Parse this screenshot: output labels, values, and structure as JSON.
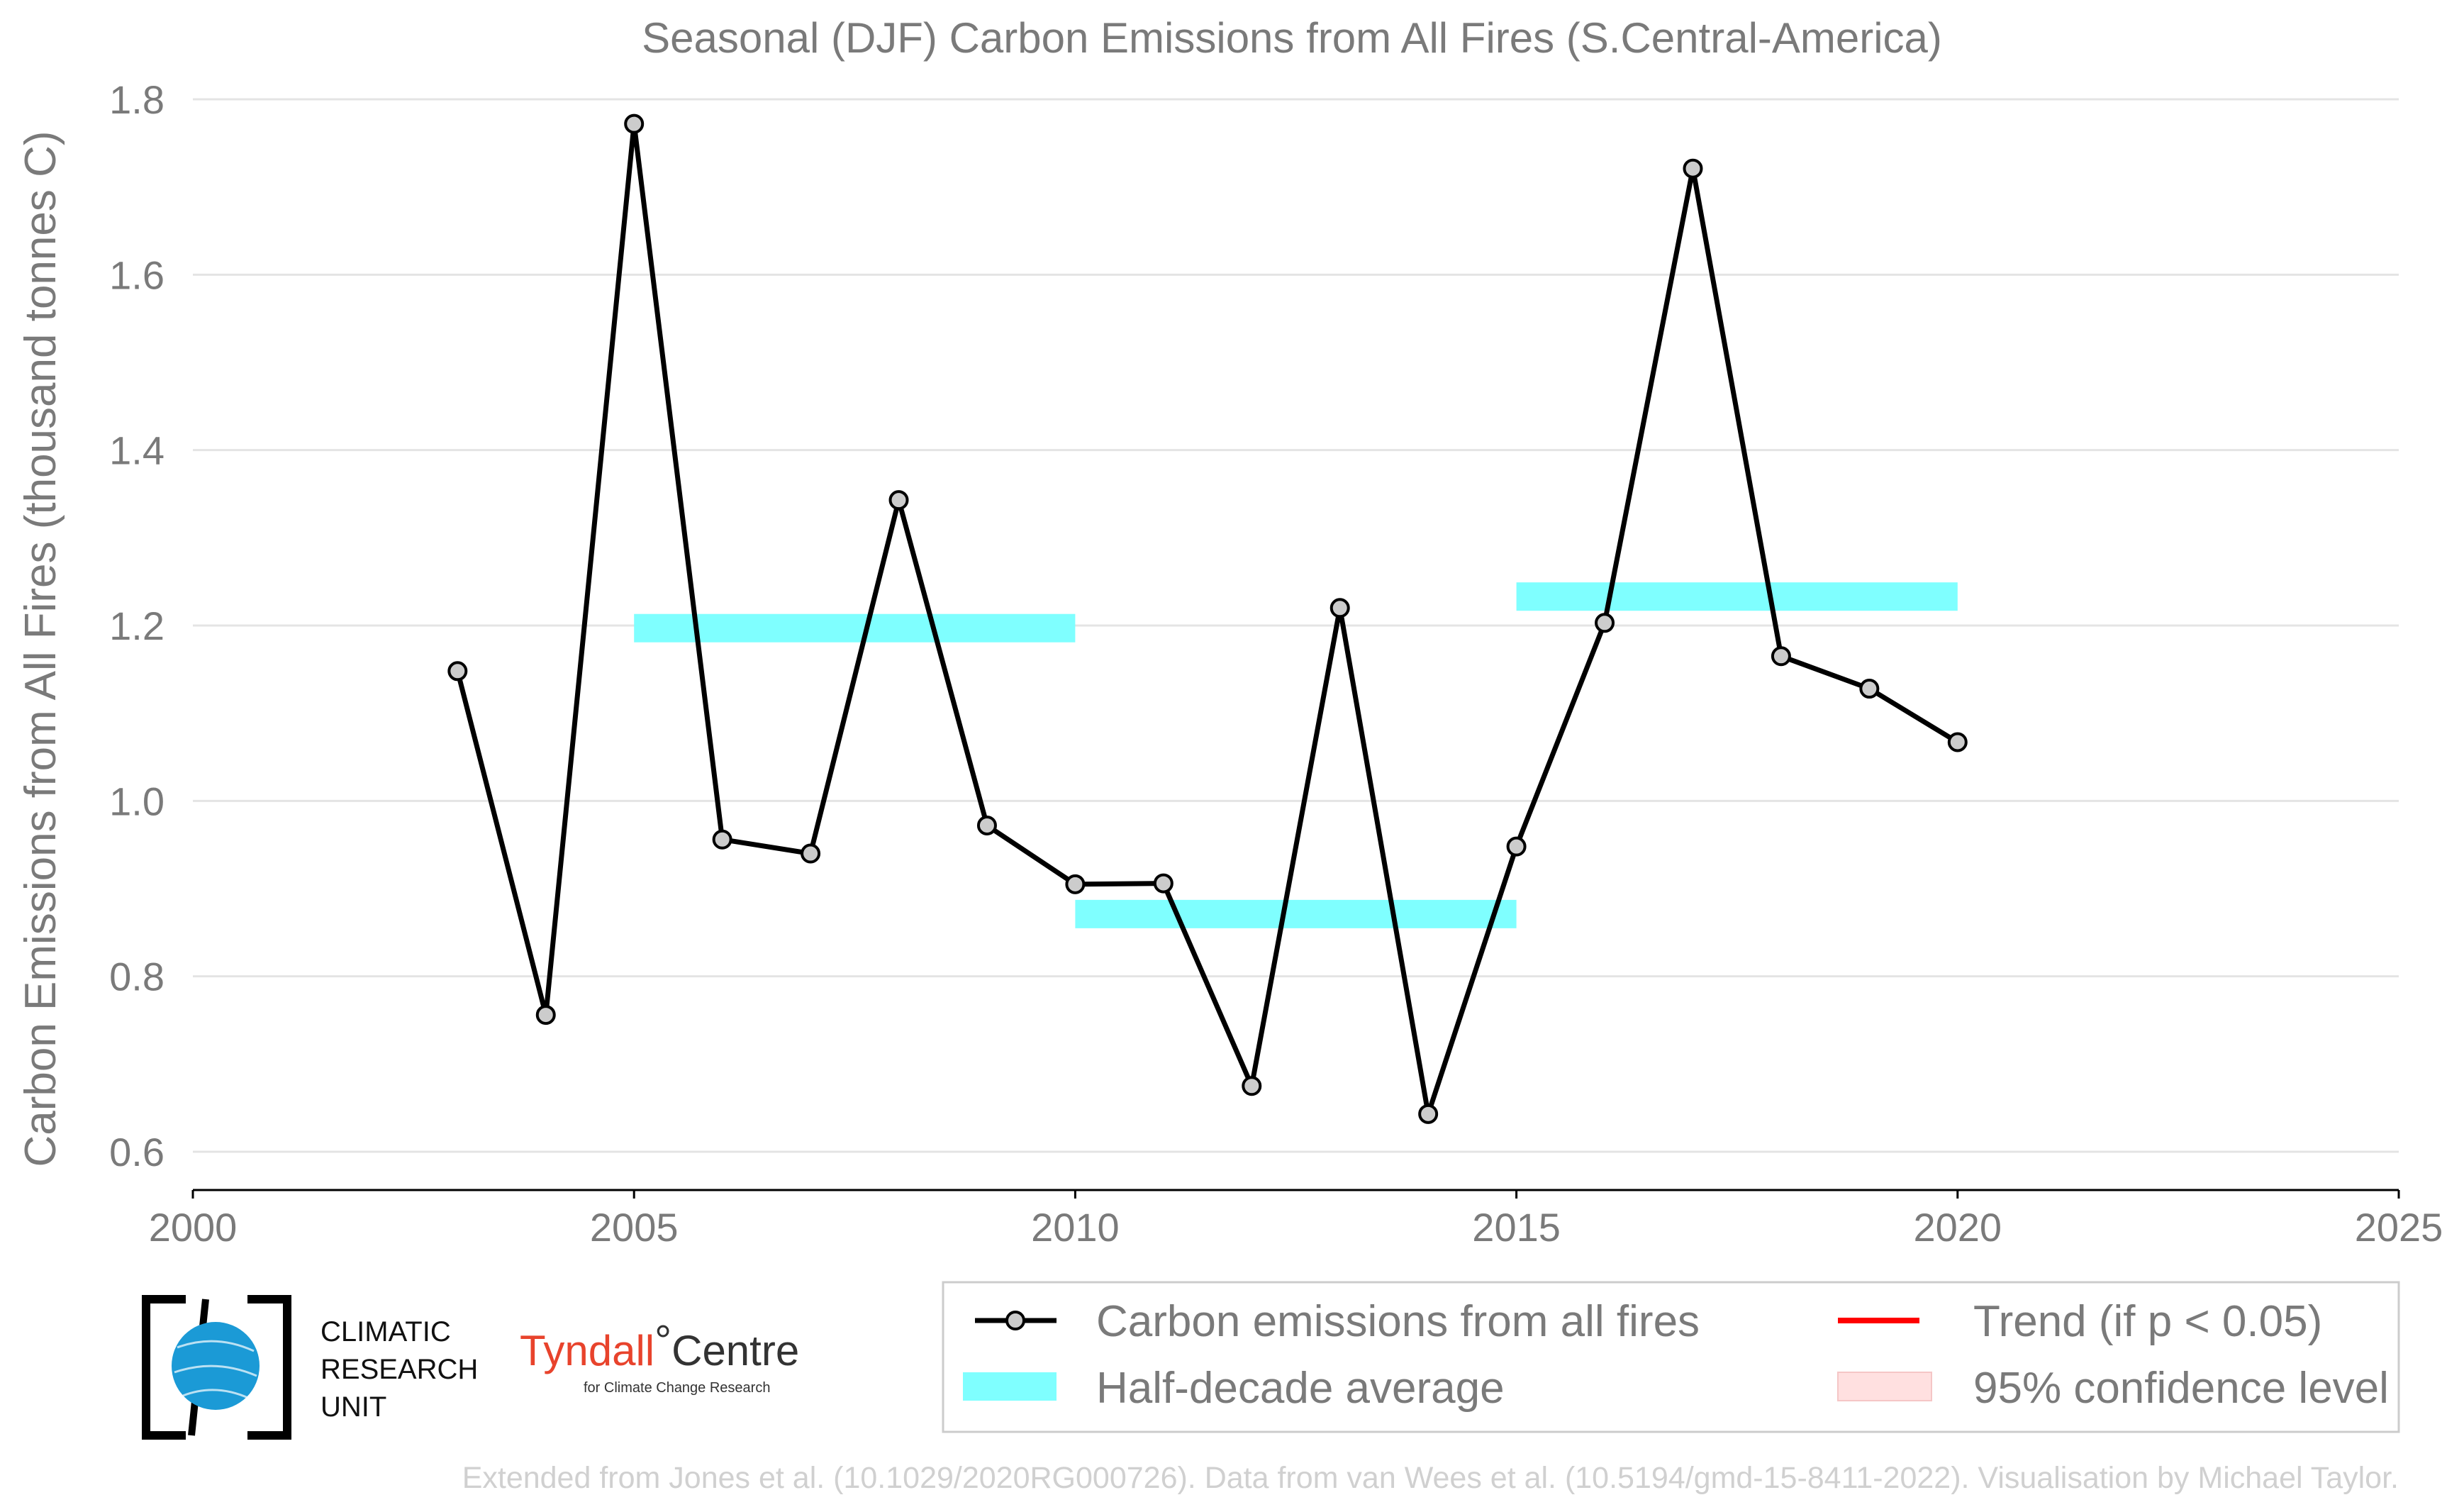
{
  "chart_data": {
    "type": "line",
    "title": "Seasonal (DJF) Carbon Emissions from All Fires (S.Central-America)",
    "xlabel": "",
    "ylabel": "Carbon Emissions from All Fires (thousand tonnes C)",
    "xlim": [
      2000,
      2025
    ],
    "ylim": [
      0.6,
      1.8
    ],
    "xticks": [
      "2000",
      "2005",
      "2010",
      "2015",
      "2020",
      "2025"
    ],
    "yticks": [
      "0.6",
      "0.8",
      "1.0",
      "1.2",
      "1.4",
      "1.6",
      "1.8"
    ],
    "grid": "horizontal",
    "series": [
      {
        "name": "Carbon emissions from all fires",
        "color": "#000000",
        "x": [
          2003,
          2004,
          2005,
          2006,
          2007,
          2008,
          2009,
          2010,
          2011,
          2012,
          2013,
          2014,
          2015,
          2016,
          2017,
          2018,
          2019,
          2020
        ],
        "y": [
          1.148,
          0.756,
          1.772,
          0.956,
          0.94,
          1.343,
          0.972,
          0.905,
          0.906,
          0.675,
          1.22,
          0.643,
          0.948,
          1.203,
          1.721,
          1.165,
          1.128,
          1.067
        ]
      },
      {
        "name": "Half-decade average",
        "color": "#7fffff",
        "segments": [
          {
            "x0": 2005,
            "x1": 2010,
            "y": 1.197
          },
          {
            "x0": 2010,
            "x1": 2015,
            "y": 0.871
          },
          {
            "x0": 2015,
            "x1": 2020,
            "y": 1.233
          }
        ]
      }
    ],
    "legend": {
      "placement": "bottom-right",
      "entries": [
        {
          "label": "Carbon emissions from all fires",
          "symbol": "line-marker",
          "color": "#000000"
        },
        {
          "label": "Trend (if p < 0.05)",
          "symbol": "line",
          "color": "#ff0000"
        },
        {
          "label": "Half-decade average",
          "symbol": "patch",
          "color": "#7fffff"
        },
        {
          "label": "95% confidence level",
          "symbol": "patch",
          "color": "#ffe0e0"
        }
      ]
    }
  },
  "logos": {
    "cru_line1": "CLIMATIC",
    "cru_line2": "RESEARCH",
    "cru_line3": "UNIT",
    "tyndall_name": "Tyndall",
    "tyndall_centre": "Centre",
    "tyndall_degree": "°",
    "tyndall_sub": "for Climate Change Research"
  },
  "footer": "Extended from Jones et al. (10.1029/2020RG000726). Data from van Wees et al. (10.5194/gmd-15-8411-2022). Visualisation by Michael Taylor."
}
